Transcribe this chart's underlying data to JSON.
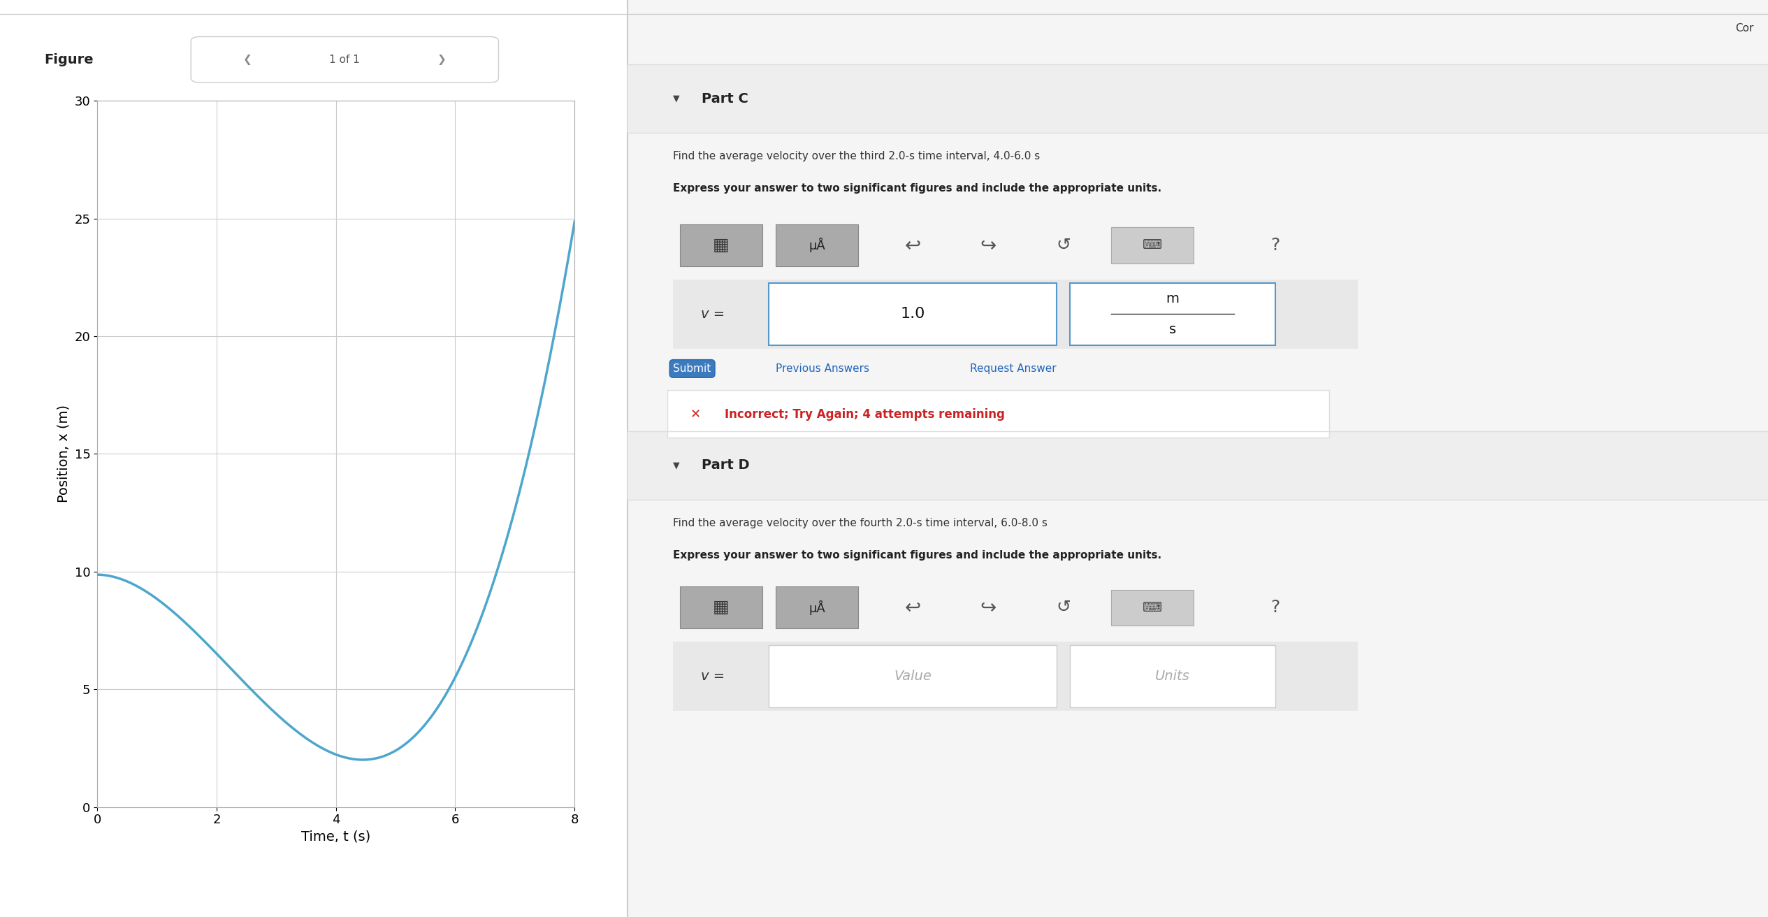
{
  "fig_width": 25.3,
  "fig_height": 13.12,
  "bg_color": "#ffffff",
  "graph": {
    "xlim": [
      0,
      8
    ],
    "ylim": [
      0,
      30
    ],
    "xticks": [
      0,
      2,
      4,
      6,
      8
    ],
    "yticks": [
      0,
      5,
      10,
      15,
      20,
      25,
      30
    ],
    "xlabel": "Time, t (s)",
    "ylabel": "Position, x (m)",
    "curve_color": "#4da6cc",
    "curve_linewidth": 2.5,
    "grid_color": "#cccccc",
    "grid_linewidth": 0.8,
    "tick_labelsize": 13,
    "axis_labelsize": 14,
    "figure_label": "Figure",
    "figure_nav": "1 of 1",
    "t_pts": [
      0,
      2,
      4,
      6,
      8
    ],
    "x_pts": [
      10,
      6,
      3,
      5,
      25
    ]
  },
  "right_panel": {
    "part_c_header": "Part C",
    "part_c_text1": "Find the average velocity over the third 2.0-s time interval, 4.0-6.0 s",
    "part_c_text2": "Express your answer to two significant figures and include the appropriate units.",
    "part_c_answer_value": "1.0",
    "part_c_answer_unit_num": "m",
    "part_c_answer_unit_den": "s",
    "submit_btn_text": "Submit",
    "prev_answers_text": "Previous Answers",
    "request_answer_text": "Request Answer",
    "incorrect_text": "Incorrect; Try Again; 4 attempts remaining",
    "part_d_header": "Part D",
    "part_d_text1": "Find the average velocity over the fourth 2.0-s time interval, 6.0-8.0 s",
    "part_d_text2": "Express your answer to two significant figures and include the appropriate units.",
    "part_d_placeholder_value": "Value",
    "part_d_placeholder_units": "Units",
    "v_label": "v =",
    "top_right_text": "Cor"
  }
}
